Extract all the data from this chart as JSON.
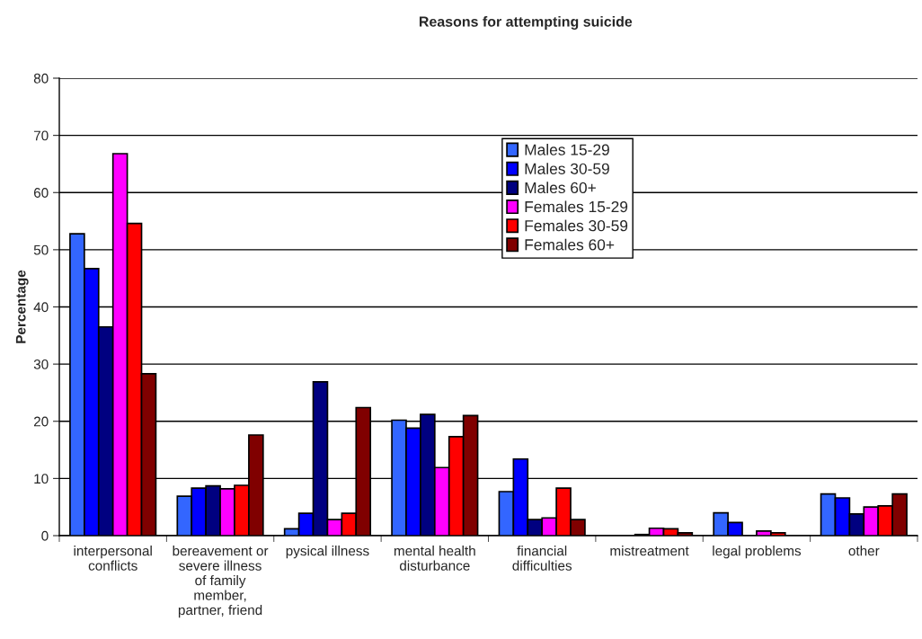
{
  "chart_data": {
    "type": "bar",
    "title": "Reasons for attempting suicide",
    "ylabel": "Percentage",
    "categories": [
      "interpersonal\nconflicts",
      "bereavement or\nsevere illness\nof family\nmember,\npartner, friend",
      "pysical illness",
      "mental health\ndisturbance",
      "financial\ndifficulties",
      "mistreatment",
      "legal problems",
      "other"
    ],
    "series": [
      {
        "name": "Males 15-29",
        "color": "#3366ff",
        "values": [
          52.8,
          6.9,
          1.2,
          20.2,
          7.7,
          0,
          4.0,
          7.3
        ]
      },
      {
        "name": "Males 30-59",
        "color": "#0000ff",
        "values": [
          46.7,
          8.3,
          3.9,
          18.8,
          13.4,
          0,
          2.3,
          6.6
        ]
      },
      {
        "name": "Males 60+",
        "color": "#000080",
        "values": [
          36.5,
          8.7,
          26.9,
          21.2,
          2.8,
          0.2,
          0,
          3.8
        ]
      },
      {
        "name": "Females 15-29",
        "color": "#ff00ff",
        "values": [
          66.8,
          8.2,
          2.8,
          11.9,
          3.1,
          1.3,
          0.8,
          5.0
        ]
      },
      {
        "name": "Females 30-59",
        "color": "#ff0000",
        "values": [
          54.6,
          8.8,
          3.9,
          17.3,
          8.3,
          1.2,
          0.5,
          5.2
        ]
      },
      {
        "name": "Females 60+",
        "color": "#800000",
        "values": [
          28.3,
          17.6,
          22.4,
          21.0,
          2.8,
          0.5,
          0,
          7.3
        ]
      }
    ],
    "ylim": [
      0,
      80
    ],
    "yticks": [
      0,
      10,
      20,
      30,
      40,
      50,
      60,
      70,
      80
    ],
    "grid": "y",
    "legend": "top"
  }
}
